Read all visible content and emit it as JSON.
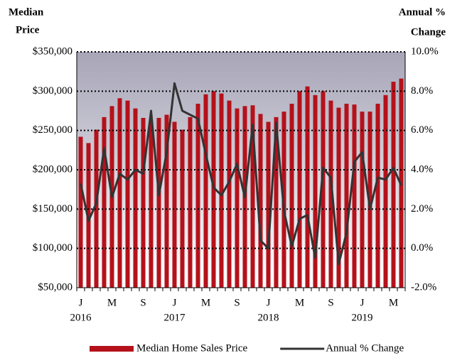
{
  "chart_data": {
    "type": "bar_line",
    "y_label": [
      "Median",
      "Price"
    ],
    "y2_label": [
      "Annual %",
      "Change"
    ],
    "categories": [
      "J",
      null,
      null,
      null,
      "M",
      null,
      null,
      null,
      "S",
      null,
      null,
      null,
      "J",
      null,
      null,
      null,
      "M",
      null,
      null,
      null,
      "S",
      null,
      null,
      null,
      "J",
      null,
      null,
      null,
      "M",
      null,
      null,
      null,
      "S",
      null,
      null,
      null,
      "J",
      null,
      null,
      null,
      "M",
      null
    ],
    "years": [
      "2016",
      null,
      null,
      null,
      null,
      null,
      null,
      null,
      null,
      null,
      null,
      null,
      "2017",
      null,
      null,
      null,
      null,
      null,
      null,
      null,
      null,
      null,
      null,
      null,
      "2018",
      null,
      null,
      null,
      null,
      null,
      null,
      null,
      null,
      null,
      null,
      null,
      "2019",
      null,
      null,
      null,
      null,
      null
    ],
    "series": [
      {
        "name": "Median Home Sales Price",
        "color": "#b5111a",
        "kind": "bar",
        "values": [
          242000,
          234000,
          251000,
          267000,
          281000,
          291000,
          288000,
          278000,
          266000,
          262000,
          266000,
          270000,
          261000,
          251000,
          267000,
          284000,
          296000,
          300000,
          297000,
          288000,
          278000,
          281000,
          282000,
          271000,
          261000,
          267000,
          274000,
          284000,
          300000,
          306000,
          295000,
          300000,
          288000,
          279000,
          284000,
          283000,
          274000,
          274000,
          284000,
          295000,
          312000,
          316000
        ]
      },
      {
        "name": "Annual % Change",
        "color": "#333333",
        "kind": "line",
        "axis": "y2",
        "values": [
          3.3,
          1.4,
          2.3,
          5.1,
          2.6,
          3.8,
          3.5,
          4.0,
          3.8,
          7.0,
          2.7,
          4.9,
          8.4,
          7.0,
          6.8,
          6.6,
          4.8,
          3.1,
          2.7,
          3.4,
          4.3,
          2.6,
          6.3,
          0.4,
          0.0,
          6.4,
          1.9,
          0.1,
          1.5,
          1.7,
          -0.5,
          4.1,
          3.6,
          -0.8,
          0.8,
          4.4,
          4.9,
          2.0,
          3.6,
          3.5,
          4.1,
          3.2
        ]
      }
    ],
    "ylim": [
      50000,
      350000
    ],
    "yticks": [
      {
        "value": 50000,
        "label": "$50,000"
      },
      {
        "value": 100000,
        "label": "$100,000"
      },
      {
        "value": 150000,
        "label": "$150,000"
      },
      {
        "value": 200000,
        "label": "$200,000"
      },
      {
        "value": 250000,
        "label": "$250,000"
      },
      {
        "value": 300000,
        "label": "$300,000"
      },
      {
        "value": 350000,
        "label": "$350,000"
      }
    ],
    "y2lim": [
      -2,
      10
    ],
    "y2ticks": [
      {
        "value": -2,
        "label": "-2.0%"
      },
      {
        "value": 0,
        "label": "0.0%"
      },
      {
        "value": 2,
        "label": "2.0%"
      },
      {
        "value": 4,
        "label": "4.0%"
      },
      {
        "value": 6,
        "label": "6.0%"
      },
      {
        "value": 8,
        "label": "8.0%"
      },
      {
        "value": 10,
        "label": "10.0%"
      }
    ],
    "grid": true
  }
}
